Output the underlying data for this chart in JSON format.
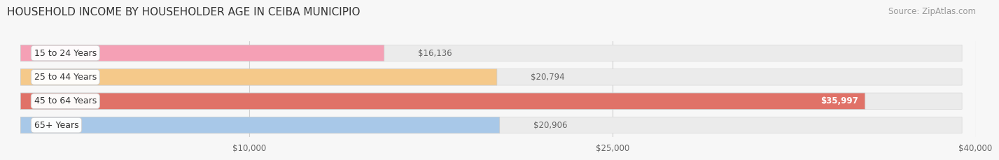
{
  "title": "HOUSEHOLD INCOME BY HOUSEHOLDER AGE IN CEIBA MUNICIPIO",
  "source": "Source: ZipAtlas.com",
  "categories": [
    "15 to 24 Years",
    "25 to 44 Years",
    "45 to 64 Years",
    "65+ Years"
  ],
  "values": [
    16136,
    20794,
    35997,
    20906
  ],
  "bar_colors": [
    "#f5a0b5",
    "#f5c98a",
    "#e07268",
    "#a8c8e8"
  ],
  "label_colors": [
    "#666666",
    "#666666",
    "#ffffff",
    "#666666"
  ],
  "xlim": [
    0,
    40000
  ],
  "xticks": [
    10000,
    25000,
    40000
  ],
  "xtick_labels": [
    "$10,000",
    "$25,000",
    "$40,000"
  ],
  "background_color": "#f7f7f7",
  "bar_bg_color": "#ebebeb",
  "title_fontsize": 11,
  "source_fontsize": 8.5,
  "label_fontsize": 8.5,
  "tick_fontsize": 8.5,
  "category_fontsize": 9
}
